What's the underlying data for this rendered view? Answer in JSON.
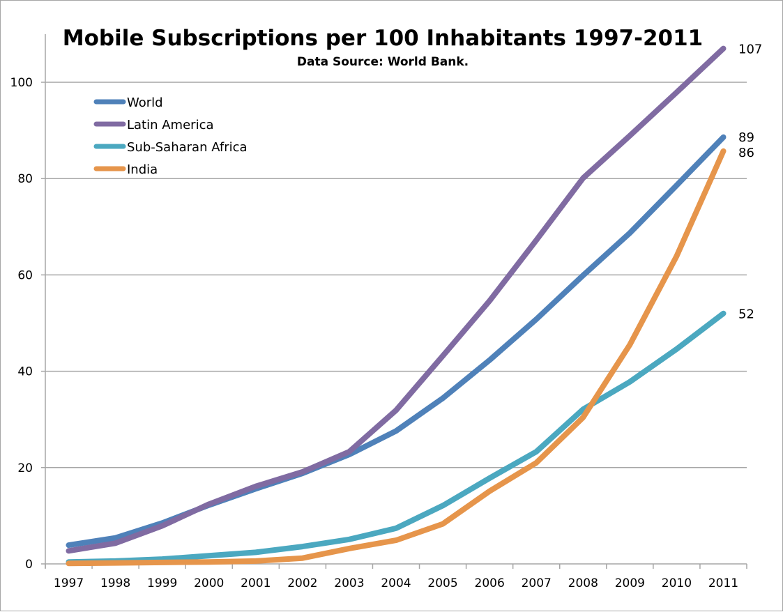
{
  "chart_data": {
    "type": "line",
    "title": "Mobile Subscriptions per 100 Inhabitants 1997-2011",
    "subtitle": "Data Source: World Bank.",
    "xlabel": "",
    "ylabel": "",
    "ylim": [
      0,
      100
    ],
    "y_ticks": [
      0,
      20,
      40,
      60,
      80,
      100
    ],
    "grid": true,
    "legend_position": "top-left",
    "categories": [
      "1997",
      "1998",
      "1999",
      "2000",
      "2001",
      "2002",
      "2003",
      "2004",
      "2005",
      "2006",
      "2007",
      "2008",
      "2009",
      "2010",
      "2011"
    ],
    "series": [
      {
        "name": "World",
        "color": "#4f81b9",
        "values": [
          3.9,
          5.4,
          8.5,
          12.2,
          15.6,
          18.8,
          22.7,
          27.6,
          34.4,
          42.3,
          50.8,
          59.9,
          68.7,
          78.6,
          88.6
        ],
        "end_label": "89"
      },
      {
        "name": "Latin America",
        "color": "#806ba2",
        "values": [
          2.7,
          4.3,
          7.9,
          12.4,
          16.1,
          19.1,
          23.3,
          31.9,
          43.2,
          54.6,
          67.2,
          80.1,
          88.9,
          97.9,
          107.0
        ],
        "end_label": "107"
      },
      {
        "name": "Sub-Saharan Africa",
        "color": "#4ba8c0",
        "values": [
          0.4,
          0.6,
          1.0,
          1.7,
          2.4,
          3.6,
          5.1,
          7.4,
          12.1,
          17.8,
          23.3,
          32.1,
          37.8,
          44.6,
          52.0
        ],
        "end_label": "52"
      },
      {
        "name": "India",
        "color": "#e6954b",
        "values": [
          0.1,
          0.2,
          0.3,
          0.4,
          0.6,
          1.2,
          3.2,
          4.9,
          8.3,
          15.1,
          21.0,
          30.4,
          45.5,
          63.9,
          85.7
        ],
        "end_label": "86"
      }
    ]
  }
}
